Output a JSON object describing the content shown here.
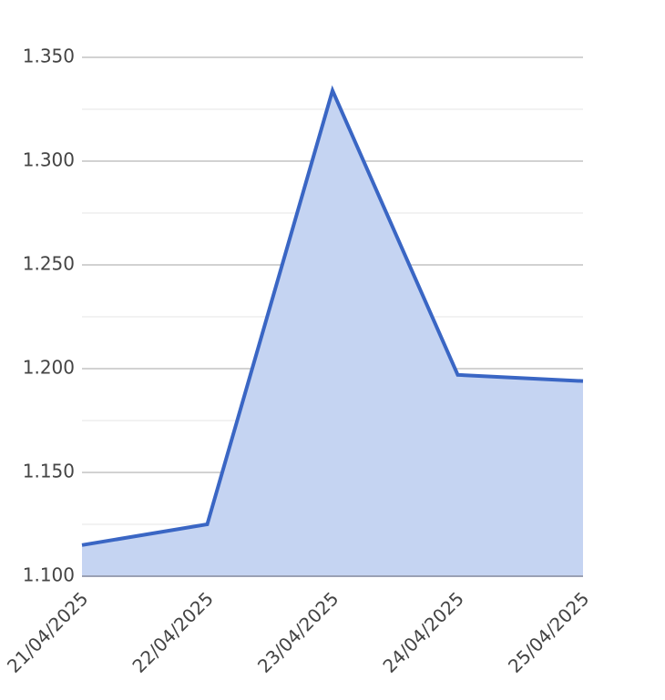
{
  "chart_data": {
    "type": "area",
    "x": [
      "21/04/2025",
      "22/04/2025",
      "23/04/2025",
      "24/04/2025",
      "25/04/2025"
    ],
    "series": [
      {
        "color": "#3a66c4",
        "fill": "#c5d4f2",
        "values": [
          1.115,
          1.125,
          1.334,
          1.197,
          1.194
        ]
      }
    ],
    "ylim": [
      1.1,
      1.35
    ],
    "yticks": [
      {
        "value": 1.1,
        "label": "1.100"
      },
      {
        "value": 1.15,
        "label": "1.150"
      },
      {
        "value": 1.2,
        "label": "1.200"
      },
      {
        "value": 1.25,
        "label": "1.250"
      },
      {
        "value": 1.3,
        "label": "1.300"
      },
      {
        "value": 1.35,
        "label": "1.350"
      }
    ],
    "minor_yticks": [
      1.125,
      1.175,
      1.225,
      1.275,
      1.325
    ],
    "grid": true
  }
}
